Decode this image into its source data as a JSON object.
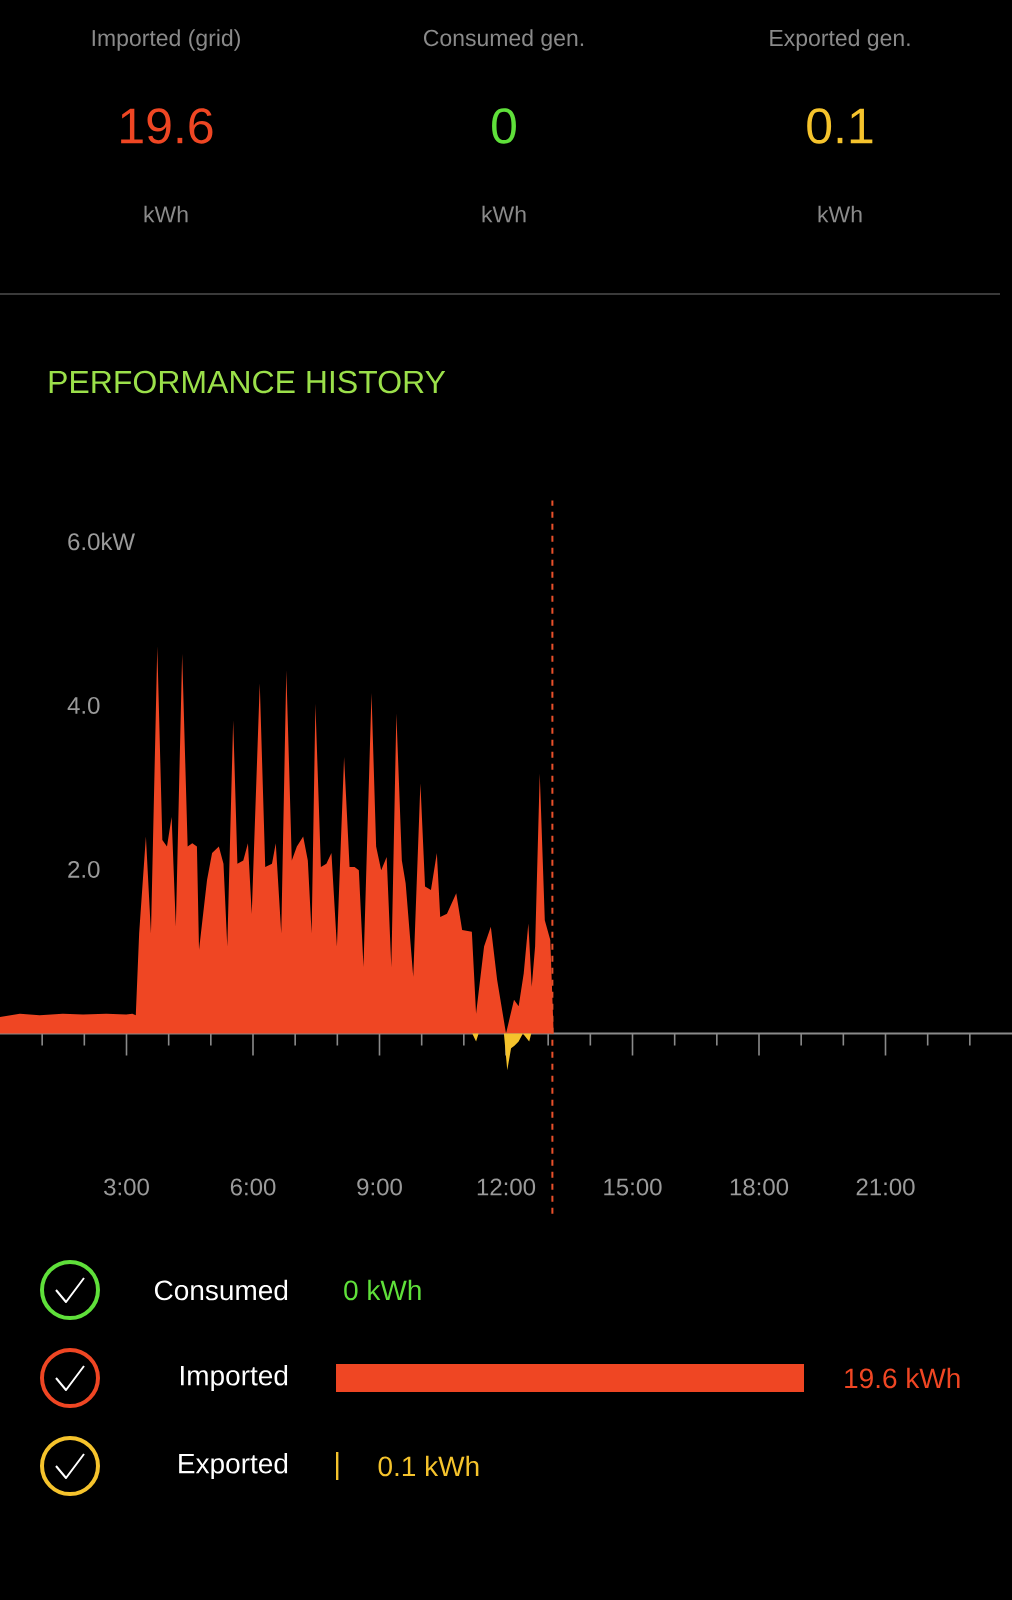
{
  "chart_data": [
    {
      "type": "other",
      "colors": [
        "#ef4623",
        "#5fe03a",
        "#f5c32c"
      ],
      "annotations": [
        "Imported (grid)",
        "19.6",
        "kWh",
        "Consumed gen.",
        "0",
        "kWh",
        "Exported gen.",
        "0.1",
        "kWh"
      ]
    },
    {
      "type": "area",
      "title": "PERFORMANCE HISTORY",
      "xlim": [
        0,
        24
      ],
      "ylim": [
        -2.2,
        6.5
      ],
      "xticks": [
        {
          "value": 1,
          "label": null
        },
        {
          "value": 2,
          "label": null
        },
        {
          "value": 3,
          "label": "3:00"
        },
        {
          "value": 4,
          "label": null
        },
        {
          "value": 5,
          "label": null
        },
        {
          "value": 6,
          "label": "6:00"
        },
        {
          "value": 7,
          "label": null
        },
        {
          "value": 8,
          "label": null
        },
        {
          "value": 9,
          "label": "9:00"
        },
        {
          "value": 10,
          "label": null
        },
        {
          "value": 11,
          "label": null
        },
        {
          "value": 12,
          "label": "12:00"
        },
        {
          "value": 13,
          "label": null
        },
        {
          "value": 14,
          "label": null
        },
        {
          "value": 15,
          "label": "15:00"
        },
        {
          "value": 16,
          "label": null
        },
        {
          "value": 17,
          "label": null
        },
        {
          "value": 18,
          "label": "18:00"
        },
        {
          "value": 19,
          "label": null
        },
        {
          "value": 20,
          "label": null
        },
        {
          "value": 21,
          "label": "21:00"
        },
        {
          "value": 22,
          "label": null
        },
        {
          "value": 23,
          "label": null
        }
      ],
      "yticks": [
        {
          "value": 2,
          "label": "2.0"
        },
        {
          "value": 4,
          "label": "4.0"
        },
        {
          "value": 6,
          "label": "6.0kW"
        }
      ],
      "ref_lines": [
        {
          "axis": "x",
          "value": 13.1,
          "color": "#e8502a",
          "line_style": "dashed"
        }
      ],
      "series": [
        {
          "color": "#ef4623",
          "x": [
            0.0,
            0.47,
            0.94,
            1.49,
            1.97,
            2.52,
            2.99,
            3.14,
            3.22,
            3.3,
            3.46,
            3.58,
            3.73,
            3.85,
            3.96,
            4.07,
            4.17,
            4.32,
            4.45,
            4.56,
            4.67,
            4.72,
            4.91,
            5.03,
            5.19,
            5.3,
            5.39,
            5.53,
            5.63,
            5.77,
            5.88,
            5.97,
            6.16,
            6.29,
            6.45,
            6.54,
            6.67,
            6.79,
            6.92,
            7.04,
            7.19,
            7.3,
            7.39,
            7.48,
            7.61,
            7.74,
            7.86,
            7.99,
            8.16,
            8.29,
            8.41,
            8.51,
            8.62,
            8.81,
            8.92,
            9.04,
            9.17,
            9.28,
            9.4,
            9.53,
            9.62,
            9.8,
            9.97,
            10.08,
            10.22,
            10.36,
            10.44,
            10.6,
            10.82,
            10.96,
            11.19,
            11.29,
            11.48,
            11.64,
            11.79,
            12.0,
            12.19,
            12.3,
            12.42,
            12.53,
            12.61,
            12.69,
            12.8,
            12.92,
            13.05,
            13.13
          ],
          "values": [
            0.2,
            0.24,
            0.22,
            0.24,
            0.23,
            0.24,
            0.23,
            0.24,
            0.22,
            1.22,
            2.4,
            1.22,
            4.72,
            2.36,
            2.28,
            2.64,
            1.3,
            4.63,
            2.28,
            2.32,
            2.28,
            1.02,
            1.87,
            2.2,
            2.28,
            2.07,
            1.06,
            3.82,
            2.07,
            2.11,
            2.32,
            1.46,
            4.27,
            2.03,
            2.07,
            2.32,
            1.22,
            4.43,
            2.11,
            2.28,
            2.4,
            2.11,
            1.22,
            4.02,
            2.03,
            2.07,
            2.2,
            1.06,
            3.37,
            2.03,
            2.03,
            1.99,
            0.81,
            4.15,
            2.28,
            1.99,
            2.15,
            0.81,
            3.9,
            2.11,
            1.83,
            0.69,
            3.05,
            1.79,
            1.75,
            2.2,
            1.42,
            1.46,
            1.71,
            1.26,
            1.24,
            0.24,
            1.06,
            1.3,
            0.65,
            0,
            0.41,
            0.33,
            0.73,
            1.34,
            0.57,
            1.06,
            3.17,
            1.38,
            1.14,
            0
          ]
        },
        {
          "color": "#f5c32c",
          "x": [
            11.2,
            11.29,
            11.35,
            11.95,
            12.03,
            12.12,
            12.2,
            12.3,
            12.4,
            12.55,
            12.6
          ],
          "values": [
            0,
            -0.1,
            0,
            0,
            -0.45,
            -0.18,
            -0.15,
            -0.1,
            0,
            -0.1,
            0
          ]
        }
      ]
    },
    {
      "type": "bar",
      "orientation": "horizontal",
      "categories": [
        "Consumed",
        "Imported",
        "Exported"
      ],
      "values": [
        0,
        19.6,
        0.1
      ],
      "colors": [
        "#5fe03a",
        "#ef4623",
        "#f5c32c"
      ],
      "value_labels": [
        "0 kWh",
        "19.6 kWh",
        "0.1 kWh"
      ]
    }
  ]
}
